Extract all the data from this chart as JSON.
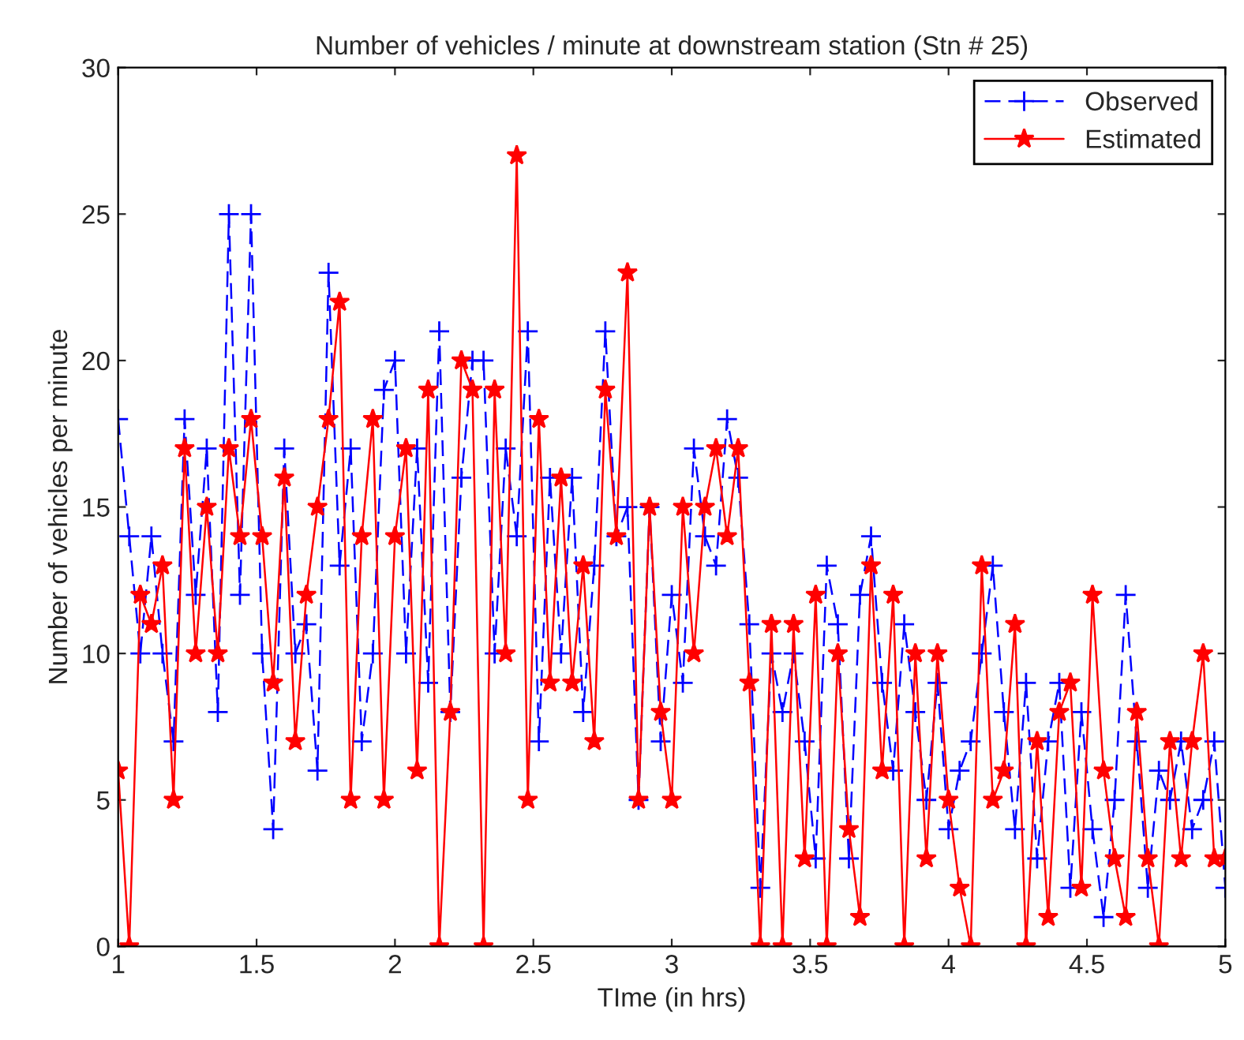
{
  "chart_data": {
    "type": "line",
    "title": "Number of vehicles / minute at downstream station (Stn # 25)",
    "xlabel": "TIme (in hrs)",
    "ylabel": "Number of vehicles per minute",
    "x": [
      1.0,
      1.04,
      1.08,
      1.12,
      1.16,
      1.2,
      1.24,
      1.28,
      1.32,
      1.36,
      1.4,
      1.44,
      1.48,
      1.52,
      1.56,
      1.6,
      1.64,
      1.68,
      1.72,
      1.76,
      1.8,
      1.84,
      1.88,
      1.92,
      1.96,
      2.0,
      2.04,
      2.08,
      2.12,
      2.16,
      2.2,
      2.24,
      2.28,
      2.32,
      2.36,
      2.4,
      2.44,
      2.48,
      2.52,
      2.56,
      2.6,
      2.64,
      2.68,
      2.72,
      2.76,
      2.8,
      2.84,
      2.88,
      2.92,
      2.96,
      3.0,
      3.04,
      3.08,
      3.12,
      3.16,
      3.2,
      3.24,
      3.28,
      3.32,
      3.36,
      3.4,
      3.44,
      3.48,
      3.52,
      3.56,
      3.6,
      3.64,
      3.68,
      3.72,
      3.76,
      3.8,
      3.84,
      3.88,
      3.92,
      3.96,
      4.0,
      4.04,
      4.08,
      4.12,
      4.16,
      4.2,
      4.24,
      4.28,
      4.32,
      4.36,
      4.4,
      4.44,
      4.48,
      4.52,
      4.56,
      4.6,
      4.64,
      4.68,
      4.72,
      4.76,
      4.8,
      4.84,
      4.88,
      4.92,
      4.96,
      5.0
    ],
    "series": [
      {
        "name": "Observed",
        "color": "#0000ff",
        "marker": "cross",
        "line_style": "dashed",
        "values": [
          18,
          14,
          10,
          14,
          10,
          7,
          18,
          12,
          17,
          8,
          25,
          12,
          25,
          10,
          4,
          17,
          10,
          11,
          6,
          23,
          13,
          17,
          7,
          10,
          19,
          20,
          10,
          17,
          9,
          21,
          8,
          16,
          20,
          20,
          10,
          17,
          14,
          21,
          7,
          16,
          10,
          16,
          8,
          13,
          21,
          14,
          15,
          5,
          15,
          7,
          12,
          9,
          17,
          14,
          13,
          18,
          16,
          11,
          2,
          10,
          8,
          10,
          7,
          3,
          13,
          11,
          3,
          12,
          14,
          9,
          6,
          11,
          8,
          5,
          9,
          4,
          6,
          7,
          10,
          13,
          8,
          4,
          9,
          3,
          7,
          9,
          2,
          8,
          4,
          1,
          5,
          12,
          7,
          2,
          6,
          5,
          7,
          4,
          5,
          7,
          2
        ]
      },
      {
        "name": "Estimated",
        "color": "#ff0000",
        "marker": "star",
        "line_style": "solid",
        "values": [
          6,
          0,
          12,
          11,
          13,
          5,
          17,
          10,
          15,
          10,
          17,
          14,
          18,
          14,
          9,
          16,
          7,
          12,
          15,
          18,
          22,
          5,
          14,
          18,
          5,
          14,
          17,
          6,
          19,
          0,
          8,
          20,
          19,
          0,
          19,
          10,
          27,
          5,
          18,
          9,
          16,
          9,
          13,
          7,
          19,
          14,
          23,
          5,
          15,
          8,
          5,
          15,
          10,
          15,
          17,
          14,
          17,
          9,
          0,
          11,
          0,
          11,
          3,
          12,
          0,
          10,
          4,
          1,
          13,
          6,
          12,
          0,
          10,
          3,
          10,
          5,
          2,
          0,
          13,
          5,
          6,
          11,
          0,
          7,
          1,
          8,
          9,
          2,
          12,
          6,
          3,
          1,
          8,
          3,
          0,
          7,
          3,
          7,
          10,
          3,
          3
        ]
      }
    ],
    "xlim": [
      1,
      5
    ],
    "ylim": [
      0,
      30
    ],
    "xticks": [
      1,
      1.5,
      2,
      2.5,
      3,
      3.5,
      4,
      4.5,
      5
    ],
    "yticks": [
      0,
      5,
      10,
      15,
      20,
      25,
      30
    ],
    "grid": false,
    "legend": "top right"
  }
}
